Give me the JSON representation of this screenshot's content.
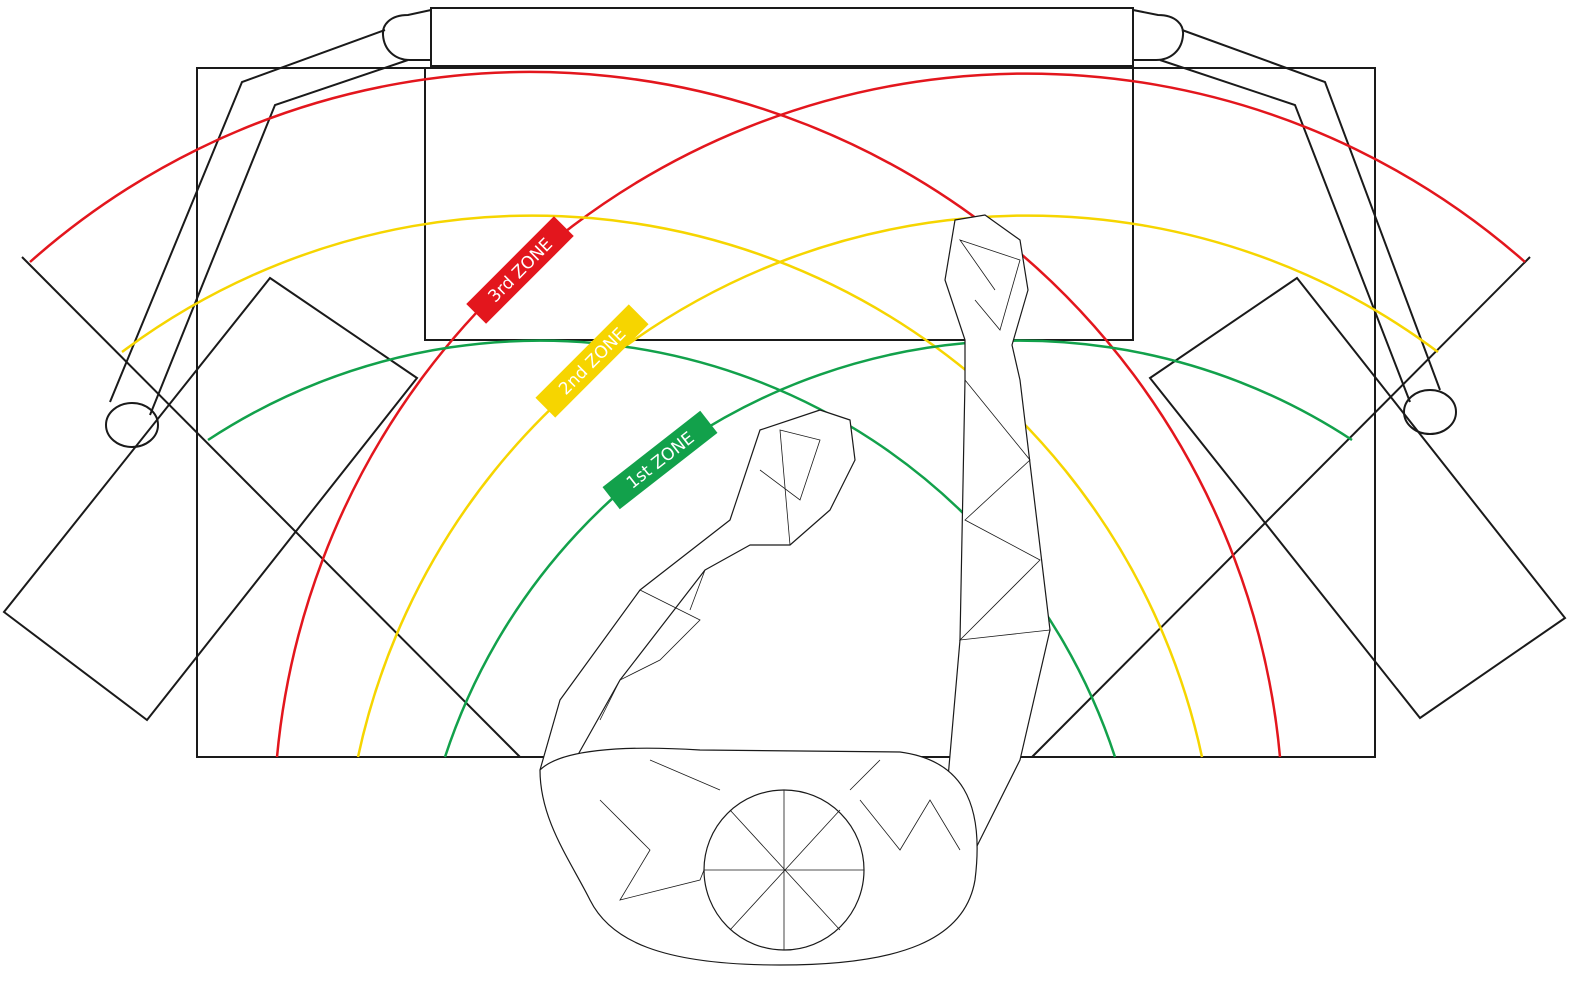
{
  "zones": [
    {
      "label": "3rd ZONE"
    },
    {
      "label": "2nd ZONE"
    },
    {
      "label": "1st ZONE"
    }
  ]
}
